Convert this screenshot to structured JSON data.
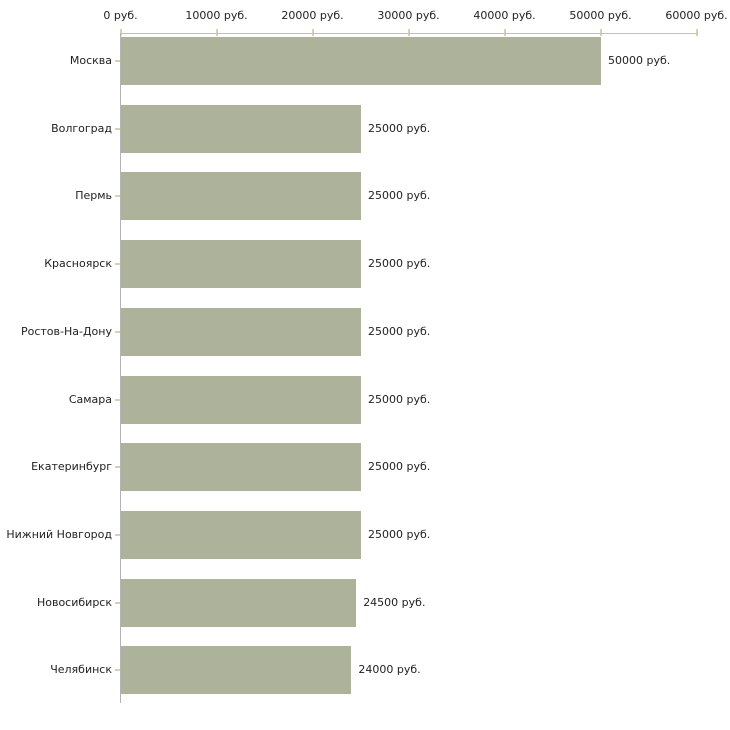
{
  "chart_data": {
    "type": "bar",
    "orientation": "horizontal",
    "title": "",
    "xlabel": "",
    "ylabel": "",
    "unit": "руб.",
    "categories": [
      "Москва",
      "Волгоград",
      "Пермь",
      "Красноярск",
      "Ростов-На-Дону",
      "Самара",
      "Екатеринбург",
      "Нижний Новгород",
      "Новосибирск",
      "Челябинск"
    ],
    "values": [
      50000,
      25000,
      25000,
      25000,
      25000,
      25000,
      25000,
      25000,
      24500,
      24000
    ],
    "bar_labels": [
      "50000 руб.",
      "25000 руб.",
      "25000 руб.",
      "25000 руб.",
      "25000 руб.",
      "25000 руб.",
      "25000 руб.",
      "25000 руб.",
      "24500 руб.",
      "24000 руб."
    ],
    "xlim": [
      0,
      60000
    ],
    "x_ticks": [
      0,
      10000,
      20000,
      30000,
      40000,
      50000,
      60000
    ],
    "x_tick_labels": [
      "0 руб.",
      "10000 руб.",
      "20000 руб.",
      "30000 руб.",
      "40000 руб.",
      "50000 руб.",
      "60000 руб."
    ],
    "grid": false,
    "legend": false,
    "colors": {
      "bar": "#adb39b",
      "axis_line_h": "#c0c0c0",
      "axis_line_v": "#b3b3b3",
      "tick_mark": "#d8d4a8",
      "text": "#222222",
      "background": "#ffffff"
    }
  }
}
